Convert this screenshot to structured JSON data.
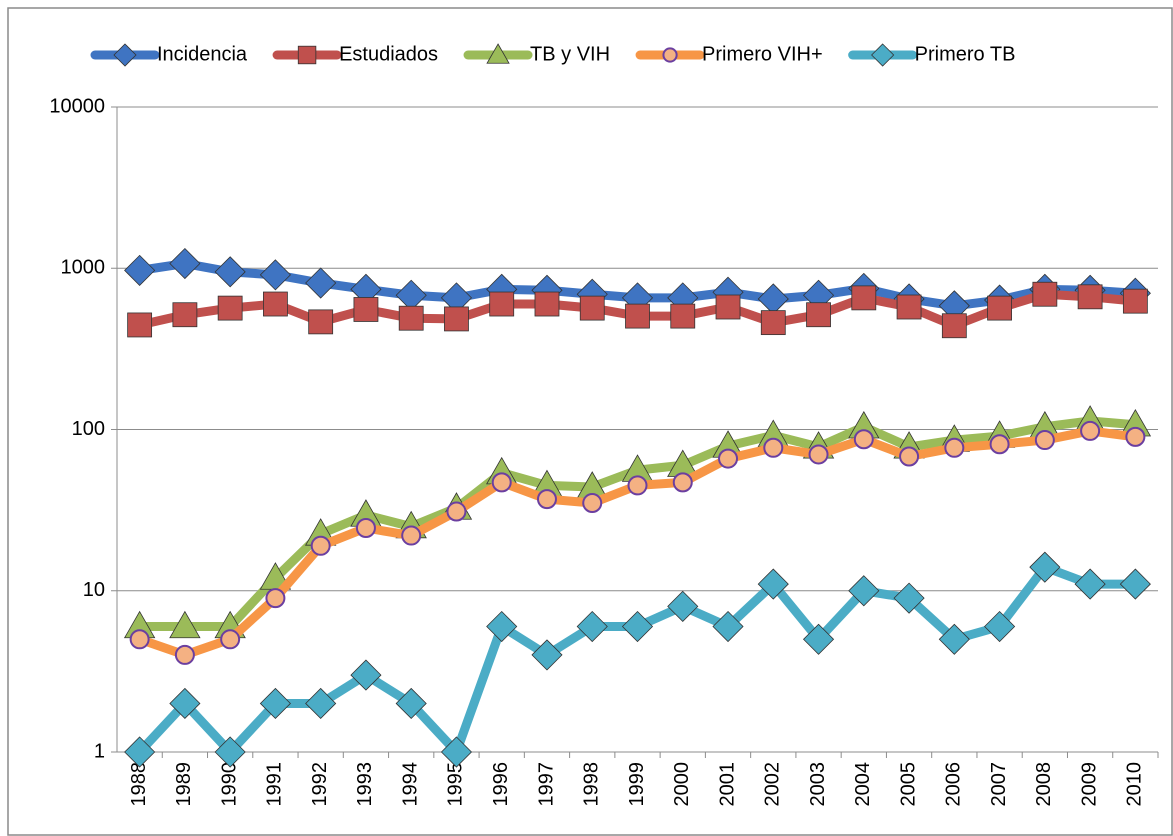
{
  "chart_data": {
    "type": "line",
    "log": true,
    "grid": true,
    "legend": "top",
    "categories": [
      "1988",
      "1989",
      "1990",
      "1991",
      "1992",
      "1993",
      "1994",
      "1995",
      "1996",
      "1997",
      "1998",
      "1999",
      "2000",
      "2001",
      "2002",
      "2003",
      "2004",
      "2005",
      "2006",
      "2007",
      "2008",
      "2009",
      "2010"
    ],
    "ylim": [
      1,
      10000
    ],
    "yticks": [
      1,
      10,
      100,
      1000,
      10000
    ],
    "series": [
      {
        "name": "Incidencia",
        "color": "#3f74c2",
        "marker": "diamond",
        "values": [
          970,
          1070,
          950,
          910,
          810,
          740,
          680,
          655,
          740,
          730,
          690,
          655,
          655,
          710,
          645,
          680,
          750,
          645,
          585,
          635,
          740,
          730,
          700
        ]
      },
      {
        "name": "Estudiados",
        "color": "#c0504d",
        "marker": "square",
        "values": [
          445,
          515,
          566,
          600,
          465,
          555,
          490,
          485,
          600,
          600,
          566,
          505,
          505,
          575,
          460,
          515,
          655,
          575,
          440,
          566,
          690,
          665,
          625
        ]
      },
      {
        "name": "TB y VIH",
        "color": "#9bbb59",
        "marker": "triangle",
        "values": [
          6,
          6,
          6,
          12,
          22.5,
          29.5,
          25,
          32.6,
          54,
          45,
          44,
          56,
          60,
          79,
          92,
          78,
          104,
          78,
          86,
          91,
          104,
          113,
          107
        ]
      },
      {
        "name": "Primero VIH+",
        "color": "#f79646",
        "marker": "circle",
        "values": [
          5,
          4,
          5,
          9,
          19,
          24.5,
          22,
          31,
          47,
          37,
          35,
          45,
          47,
          66,
          77,
          70,
          87,
          68,
          77,
          81,
          86,
          98,
          90
        ]
      },
      {
        "name": "Primero TB",
        "color": "#4bacc6",
        "marker": "diamond",
        "values": [
          1,
          2,
          1,
          2,
          2,
          3,
          2,
          1,
          6,
          4,
          6,
          6,
          8,
          6,
          11,
          5,
          10,
          9,
          5,
          6,
          14,
          11,
          11
        ]
      }
    ]
  }
}
